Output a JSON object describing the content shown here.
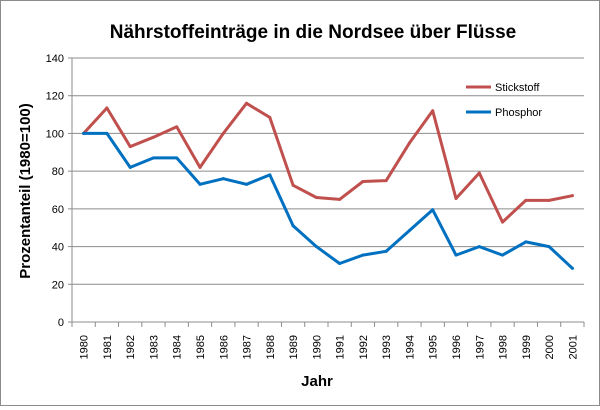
{
  "chart_data": {
    "type": "line",
    "title": "Nährstoffeinträge in die Nordsee über Flüsse",
    "xlabel": "Jahr",
    "ylabel": "Prozentanteil (1980=100)",
    "categories": [
      "1980",
      "1981",
      "1982",
      "1983",
      "1984",
      "1985",
      "1986",
      "1987",
      "1988",
      "1989",
      "1990",
      "1991",
      "1992",
      "1993",
      "1994",
      "1995",
      "1996",
      "1997",
      "1998",
      "1999",
      "2000",
      "2001"
    ],
    "ylim": [
      0,
      140
    ],
    "yticks": [
      "0",
      "20",
      "40",
      "60",
      "80",
      "100",
      "120",
      "140"
    ],
    "grid": "horizontal",
    "legend_position": "top-right",
    "series": [
      {
        "name": "Stickstoff",
        "color": "#c0504d",
        "values": [
          100,
          113.5,
          93,
          98,
          103.5,
          82,
          100,
          116,
          108.5,
          72.5,
          66,
          65,
          74.5,
          75,
          95,
          112,
          65.5,
          79,
          53,
          64.5,
          64.5,
          67
        ]
      },
      {
        "name": "Phosphor",
        "color": "#0070c0",
        "values": [
          100,
          100,
          82,
          87,
          87,
          73,
          76,
          73,
          78,
          51,
          40,
          31,
          35.5,
          37.5,
          48.5,
          59.5,
          35.5,
          40,
          35.5,
          42.5,
          40,
          28.5
        ]
      }
    ]
  }
}
